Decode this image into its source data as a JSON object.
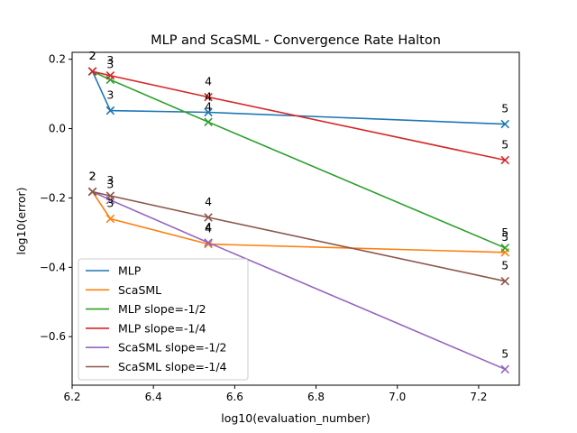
{
  "chart_data": {
    "type": "line",
    "title": "MLP and ScaSML - Convergence Rate Halton",
    "xlabel": "log10(evaluation_number)",
    "ylabel": "log10(error)",
    "xlim": [
      6.2,
      7.3
    ],
    "ylim": [
      -0.74,
      0.22
    ],
    "xticks": [
      "6.2",
      "6.4",
      "6.6",
      "6.8",
      "7.0",
      "7.2"
    ],
    "yticks": [
      "−0.6",
      "−0.4",
      "−0.2",
      "0.0",
      "0.2"
    ],
    "grid": false,
    "legend_position": "lower left",
    "point_labels": [
      "2",
      "3",
      "4",
      "5"
    ],
    "series": [
      {
        "name": "MLP",
        "color": "#1f77b4",
        "x": [
          6.25,
          6.294,
          6.535,
          7.265
        ],
        "y": [
          0.165,
          0.052,
          0.047,
          0.013
        ]
      },
      {
        "name": "ScaSML",
        "color": "#ff7f0e",
        "x": [
          6.25,
          6.294,
          6.535,
          7.265
        ],
        "y": [
          -0.182,
          -0.26,
          -0.333,
          -0.357
        ]
      },
      {
        "name": "MLP slope=-1/2",
        "color": "#2ca02c",
        "x": [
          6.25,
          6.294,
          6.535,
          7.265
        ],
        "y": [
          0.165,
          0.141,
          0.019,
          -0.344
        ]
      },
      {
        "name": "MLP slope=-1/4",
        "color": "#d62728",
        "x": [
          6.25,
          6.294,
          6.535,
          7.265
        ],
        "y": [
          0.165,
          0.153,
          0.091,
          -0.091
        ]
      },
      {
        "name": "ScaSML slope=-1/2",
        "color": "#9467bd",
        "x": [
          6.25,
          6.294,
          6.535,
          7.265
        ],
        "y": [
          -0.182,
          -0.206,
          -0.329,
          -0.694
        ]
      },
      {
        "name": "ScaSML slope=-1/4",
        "color": "#8c564b",
        "x": [
          6.25,
          6.294,
          6.535,
          7.265
        ],
        "y": [
          -0.182,
          -0.194,
          -0.256,
          -0.44
        ]
      }
    ]
  }
}
